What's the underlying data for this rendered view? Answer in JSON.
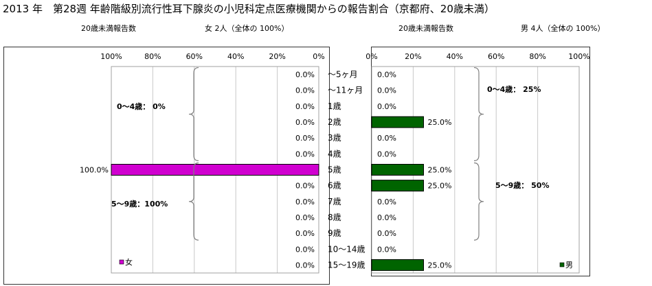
{
  "title": "2013 年　第28週 年齢階級別流行性耳下腺炎の小児科定点医療機関からの報告割合（京都府、20歳未満）",
  "subtitles": {
    "female_count_label": "20歳未満報告数",
    "female_total": "女  2人（全体の  100%）",
    "male_count_label": "20歳未満報告数",
    "male_total": "男  4人（全体の  100%）"
  },
  "colors": {
    "female_bar": "#d000d0",
    "male_bar": "#006400",
    "grid": "#c8c8c8",
    "brace": "#808080"
  },
  "chart_data": [
    {
      "type": "bar",
      "orientation": "horizontal",
      "direction": "right-to-left",
      "series": [
        {
          "name": "女",
          "values": [
            0,
            0,
            0,
            0,
            0,
            0,
            100,
            0,
            0,
            0,
            0,
            0,
            0
          ]
        }
      ],
      "categories": [
        "～5ヶ月",
        "～11ヶ月",
        "1歳",
        "2歳",
        "3歳",
        "4歳",
        "5歳",
        "6歳",
        "7歳",
        "8歳",
        "9歳",
        "10～14歳",
        "15～19歳"
      ],
      "value_labels": [
        "0.0%",
        "0.0%",
        "0.0%",
        "0.0%",
        "0.0%",
        "0.0%",
        "100.0%",
        "0.0%",
        "0.0%",
        "0.0%",
        "0.0%",
        "0.0%",
        "0.0%"
      ],
      "xlim": [
        0,
        100
      ],
      "ticks": [
        "100%",
        "80%",
        "60%",
        "40%",
        "20%",
        "0%"
      ],
      "legend": "bottom-left",
      "group_annotations": [
        "0～4歳：  0%",
        "5～9歳：100%"
      ]
    },
    {
      "type": "bar",
      "orientation": "horizontal",
      "direction": "left-to-right",
      "series": [
        {
          "name": "男",
          "values": [
            0,
            0,
            0,
            25,
            0,
            0,
            25,
            25,
            0,
            0,
            0,
            0,
            25
          ]
        }
      ],
      "categories": [
        "～5ヶ月",
        "～11ヶ月",
        "1歳",
        "2歳",
        "3歳",
        "4歳",
        "5歳",
        "6歳",
        "7歳",
        "8歳",
        "9歳",
        "10～14歳",
        "15～19歳"
      ],
      "value_labels": [
        "0.0%",
        "0.0%",
        "0.0%",
        "25.0%",
        "0.0%",
        "0.0%",
        "25.0%",
        "25.0%",
        "0.0%",
        "0.0%",
        "0.0%",
        "0.0%",
        "25.0%"
      ],
      "xlim": [
        0,
        100
      ],
      "ticks": [
        "0%",
        "20%",
        "40%",
        "60%",
        "80%",
        "100%"
      ],
      "legend": "bottom-right",
      "group_annotations": [
        "0～4歳：  25%",
        "5～9歳：  50%"
      ]
    }
  ]
}
